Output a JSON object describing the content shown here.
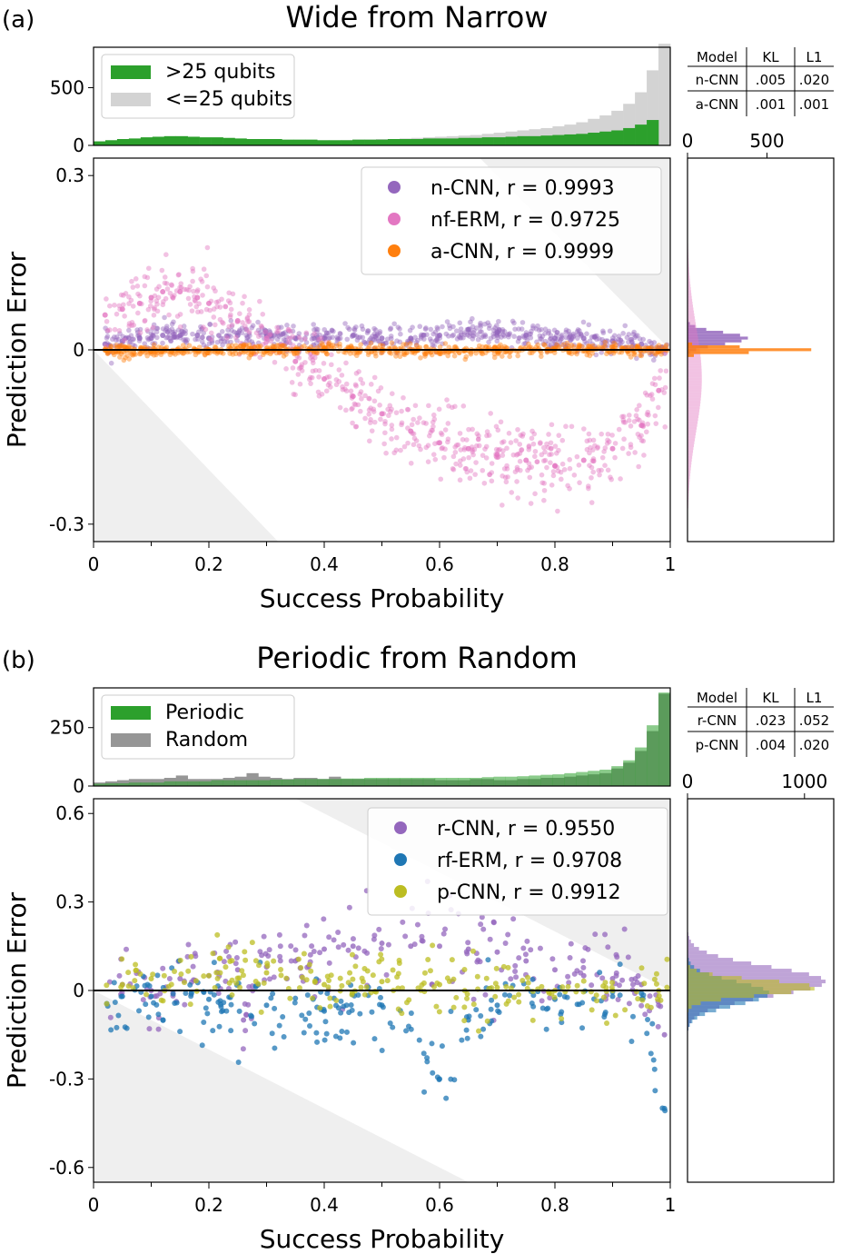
{
  "chart_data": [
    {
      "panel": "(a)",
      "title": "Wide from Narrow",
      "type": "scatter",
      "xlabel": "Success Probability",
      "ylabel": "Prediction Error",
      "xlim": [
        0,
        1
      ],
      "ylim": [
        -0.33,
        0.33
      ],
      "xticks": [
        "0",
        "0.2",
        "0.4",
        "0.6",
        "0.8",
        "1"
      ],
      "yticks": [
        "-0.3",
        "0",
        "0.3"
      ],
      "yticks_values": [
        -0.3,
        0,
        0.3
      ],
      "legend_position": "top-right",
      "series": [
        {
          "name": "n-CNN, r = 0.9993",
          "color": "#9467bd",
          "x": [
            0.02,
            0.05,
            0.08,
            0.1,
            0.12,
            0.15,
            0.18,
            0.2,
            0.25,
            0.3,
            0.35,
            0.4,
            0.45,
            0.5,
            0.55,
            0.6,
            0.65,
            0.7,
            0.75,
            0.8,
            0.85,
            0.9,
            0.95,
            0.98
          ],
          "y": [
            0.01,
            0.015,
            0.02,
            0.02,
            0.025,
            0.025,
            0.025,
            0.02,
            0.025,
            0.025,
            0.02,
            0.02,
            0.025,
            0.02,
            0.02,
            0.025,
            0.035,
            0.03,
            0.025,
            0.02,
            0.02,
            0.015,
            0.01,
            0.003
          ]
        },
        {
          "name": "nf-ERM, r = 0.9725",
          "color": "#e377c2",
          "x": [
            0.02,
            0.05,
            0.08,
            0.1,
            0.12,
            0.15,
            0.18,
            0.2,
            0.25,
            0.3,
            0.35,
            0.4,
            0.45,
            0.5,
            0.55,
            0.6,
            0.65,
            0.7,
            0.75,
            0.8,
            0.85,
            0.9,
            0.95,
            0.98
          ],
          "y": [
            0.06,
            0.07,
            0.08,
            0.09,
            0.1,
            0.1,
            0.09,
            0.08,
            0.05,
            0.02,
            -0.02,
            -0.05,
            -0.08,
            -0.11,
            -0.14,
            -0.16,
            -0.17,
            -0.18,
            -0.19,
            -0.2,
            -0.19,
            -0.17,
            -0.13,
            -0.07
          ]
        },
        {
          "name": "a-CNN, r = 0.9999",
          "color": "#ff7f0e",
          "x": [
            0.02,
            0.1,
            0.2,
            0.3,
            0.4,
            0.5,
            0.6,
            0.7,
            0.8,
            0.9,
            0.98
          ],
          "y": [
            0.0,
            -0.003,
            0.0,
            -0.002,
            0.002,
            0.0,
            -0.003,
            0.0,
            0.001,
            0.0,
            -0.002
          ]
        }
      ],
      "top_hist": {
        "ylim": [
          0,
          850
        ],
        "yticks": [
          "0",
          "500"
        ],
        "yticks_values": [
          0,
          500
        ],
        "series": [
          {
            "name": ">25 qubits",
            "color": "#2ca02c",
            "values": [
              35,
              45,
              55,
              60,
              70,
              75,
              80,
              80,
              75,
              70,
              70,
              65,
              60,
              55,
              55,
              55,
              50,
              50,
              50,
              45,
              45,
              45,
              50,
              50,
              50,
              55,
              55,
              55,
              60,
              60,
              60,
              65,
              65,
              70,
              70,
              75,
              80,
              80,
              85,
              90,
              95,
              100,
              110,
              120,
              130,
              150,
              180,
              220
            ]
          },
          {
            "name": "<=25 qubits",
            "color": "#d3d3d3",
            "values": [
              10,
              15,
              15,
              15,
              15,
              15,
              20,
              20,
              20,
              20,
              25,
              25,
              25,
              30,
              30,
              30,
              35,
              35,
              40,
              40,
              40,
              45,
              50,
              50,
              55,
              55,
              60,
              65,
              70,
              75,
              80,
              85,
              90,
              100,
              110,
              120,
              130,
              140,
              150,
              165,
              180,
              200,
              230,
              260,
              300,
              360,
              460,
              650,
              880
            ]
          }
        ]
      },
      "right_hist": {
        "xticks": [
          "0",
          "500"
        ],
        "xticks_values": [
          0,
          500
        ]
      },
      "table": {
        "header": [
          "Model",
          "KL",
          "L1"
        ],
        "rows": [
          [
            "n-CNN",
            ".005",
            ".020"
          ],
          [
            "a-CNN",
            ".001",
            ".001"
          ]
        ]
      }
    },
    {
      "panel": "(b)",
      "title": "Periodic from Random",
      "type": "scatter",
      "xlabel": "Success Probability",
      "ylabel": "Prediction Error",
      "xlim": [
        0,
        1
      ],
      "ylim": [
        -0.65,
        0.65
      ],
      "xticks": [
        "0",
        "0.2",
        "0.4",
        "0.6",
        "0.8",
        "1"
      ],
      "yticks": [
        "-0.6",
        "-0.3",
        "0",
        "0.3",
        "0.6"
      ],
      "yticks_values": [
        -0.6,
        -0.3,
        0,
        0.3,
        0.6
      ],
      "legend_position": "top-right",
      "series": [
        {
          "name": "r-CNN, r = 0.9550",
          "color": "#9467bd",
          "x": [
            0.05,
            0.1,
            0.15,
            0.2,
            0.25,
            0.26,
            0.3,
            0.35,
            0.4,
            0.45,
            0.5,
            0.55,
            0.6,
            0.65,
            0.7,
            0.75,
            0.8,
            0.85,
            0.9,
            0.95,
            0.99
          ],
          "y": [
            0.02,
            0.0,
            0.04,
            0.05,
            0.07,
            -0.1,
            0.08,
            0.1,
            0.14,
            0.15,
            0.16,
            0.15,
            0.15,
            0.14,
            0.13,
            0.1,
            0.07,
            0.05,
            0.04,
            0.02,
            -0.15
          ]
        },
        {
          "name": "rf-ERM, r = 0.9708",
          "color": "#1f77b4",
          "x": [
            0.05,
            0.1,
            0.2,
            0.3,
            0.4,
            0.5,
            0.6,
            0.65,
            0.7,
            0.8,
            0.9,
            0.95,
            0.99
          ],
          "y": [
            -0.02,
            -0.02,
            -0.03,
            -0.05,
            -0.07,
            -0.05,
            -0.3,
            -0.1,
            -0.05,
            -0.03,
            -0.02,
            -0.01,
            -0.4
          ]
        },
        {
          "name": "p-CNN, r = 0.9912",
          "color": "#bcbd22",
          "x": [
            0.05,
            0.1,
            0.2,
            0.3,
            0.4,
            0.5,
            0.6,
            0.7,
            0.8,
            0.9,
            0.98
          ],
          "y": [
            0.02,
            0.04,
            0.05,
            0.06,
            0.02,
            0.03,
            0.02,
            0.01,
            0.0,
            0.0,
            0.0
          ]
        }
      ],
      "top_hist": {
        "ylim": [
          0,
          420
        ],
        "yticks": [
          "0",
          "250"
        ],
        "yticks_values": [
          0,
          250
        ],
        "series": [
          {
            "name": "Periodic",
            "color": "#2ca02c",
            "values": [
              10,
              12,
              12,
              15,
              15,
              15,
              20,
              20,
              20,
              20,
              25,
              25,
              25,
              25,
              25,
              28,
              28,
              30,
              30,
              30,
              30,
              32,
              32,
              35,
              35,
              35,
              35,
              35,
              35,
              35,
              35,
              35,
              35,
              38,
              40,
              40,
              42,
              45,
              48,
              50,
              55,
              60,
              65,
              70,
              85,
              110,
              165,
              260,
              400
            ]
          },
          {
            "name": "Random",
            "color": "#969696",
            "values": [
              15,
              20,
              25,
              30,
              30,
              30,
              35,
              45,
              30,
              30,
              30,
              35,
              40,
              55,
              40,
              35,
              30,
              35,
              35,
              30,
              40,
              30,
              30,
              30,
              30,
              30,
              30,
              30,
              30,
              25,
              25,
              25,
              30,
              30,
              25,
              25,
              30,
              30,
              35,
              35,
              40,
              45,
              50,
              55,
              75,
              100,
              150,
              235,
              395
            ]
          }
        ]
      },
      "right_hist": {
        "xticks": [
          "0",
          "1000"
        ],
        "xticks_values": [
          0,
          1000
        ]
      },
      "table": {
        "header": [
          "Model",
          "KL",
          "L1"
        ],
        "rows": [
          [
            "r-CNN",
            ".023",
            ".052"
          ],
          [
            "p-CNN",
            ".004",
            ".020"
          ]
        ]
      }
    }
  ]
}
